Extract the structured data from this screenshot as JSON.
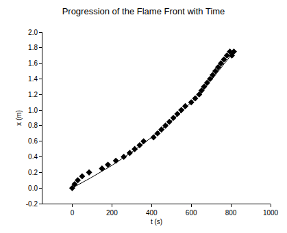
{
  "chart_data": {
    "type": "scatter",
    "title": "Progression of the Flame Front with Time",
    "x_label": "t (s)",
    "y_label": "x (m)",
    "xlim": [
      -150,
      1000
    ],
    "xticks": [
      0,
      200,
      400,
      600,
      800,
      1000
    ],
    "ylim": [
      -0.2,
      2.0
    ],
    "yticks": [
      -0.2,
      {
        "value": 0,
        "label": "0.0"
      },
      0.2,
      0.4,
      0.6,
      0.8,
      {
        "value": 1,
        "label": "1.0"
      },
      1.2,
      1.4,
      1.6,
      1.8,
      {
        "value": 2,
        "label": "2.0"
      }
    ],
    "grid": false,
    "series": [
      {
        "type": "scatter",
        "marker": "diamond",
        "color": "#000000",
        "x": [
          0,
          12,
          28,
          50,
          85,
          150,
          180,
          220,
          260,
          290,
          315,
          340,
          360,
          410,
          430,
          450,
          470,
          490,
          510,
          530,
          550,
          570,
          600,
          620,
          640,
          652,
          665,
          680,
          695,
          708,
          722,
          736,
          750,
          765,
          780,
          795,
          805,
          815
        ],
        "values": [
          0,
          0.05,
          0.1,
          0.15,
          0.2,
          0.25,
          0.3,
          0.35,
          0.4,
          0.45,
          0.5,
          0.55,
          0.6,
          0.65,
          0.7,
          0.75,
          0.8,
          0.85,
          0.9,
          0.95,
          1.0,
          1.05,
          1.1,
          1.15,
          1.2,
          1.25,
          1.3,
          1.35,
          1.4,
          1.45,
          1.5,
          1.55,
          1.6,
          1.65,
          1.7,
          1.75,
          1.7,
          1.75
        ]
      },
      {
        "type": "line",
        "line_style": "solid",
        "color": "#000000",
        "x": [
          0,
          100,
          200,
          300,
          400,
          500,
          600,
          700,
          815
        ],
        "values": [
          0,
          0.14,
          0.29,
          0.46,
          0.65,
          0.86,
          1.1,
          1.38,
          1.75
        ]
      }
    ]
  }
}
